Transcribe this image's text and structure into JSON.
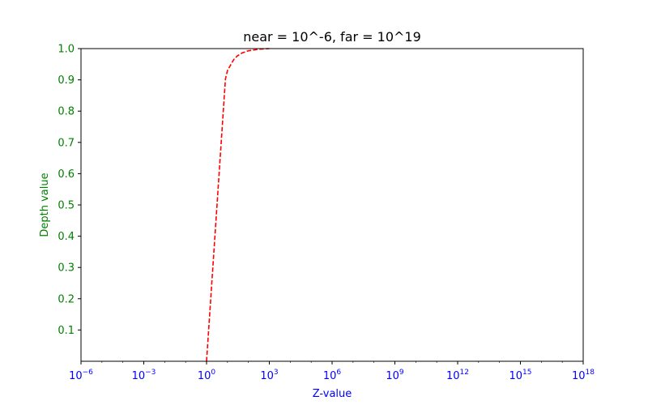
{
  "chart_data": {
    "type": "line",
    "title": "near = 10^-6, far = 10^19",
    "xlabel": "Z-value",
    "ylabel": "Depth value",
    "xscale": "log",
    "xlim_exponent": [
      -6,
      18
    ],
    "ylim": [
      0,
      1.0
    ],
    "x_tick_base": "10",
    "x_tick_exponents": [
      "−6",
      "−3",
      "0",
      "3",
      "6",
      "9",
      "12",
      "15",
      "18"
    ],
    "y_ticks": [
      "0.1",
      "0.2",
      "0.3",
      "0.4",
      "0.5",
      "0.6",
      "0.7",
      "0.8",
      "0.9",
      "1.0"
    ],
    "grid": false,
    "series": [
      {
        "style": "dashed",
        "color": "#ff0000",
        "x": [
          1,
          2,
          3,
          5,
          8,
          10,
          20,
          30,
          50,
          80,
          100,
          200,
          300,
          500,
          1000
        ],
        "y": [
          0.0,
          0.301,
          0.477,
          0.699,
          0.903,
          0.93,
          0.965,
          0.977,
          0.986,
          0.991,
          0.993,
          0.996,
          0.998,
          0.999,
          1.0
        ]
      }
    ],
    "colors": {
      "y_axis_text": "#008000",
      "x_axis_text": "#0000ff",
      "line": "#ff0000"
    }
  }
}
